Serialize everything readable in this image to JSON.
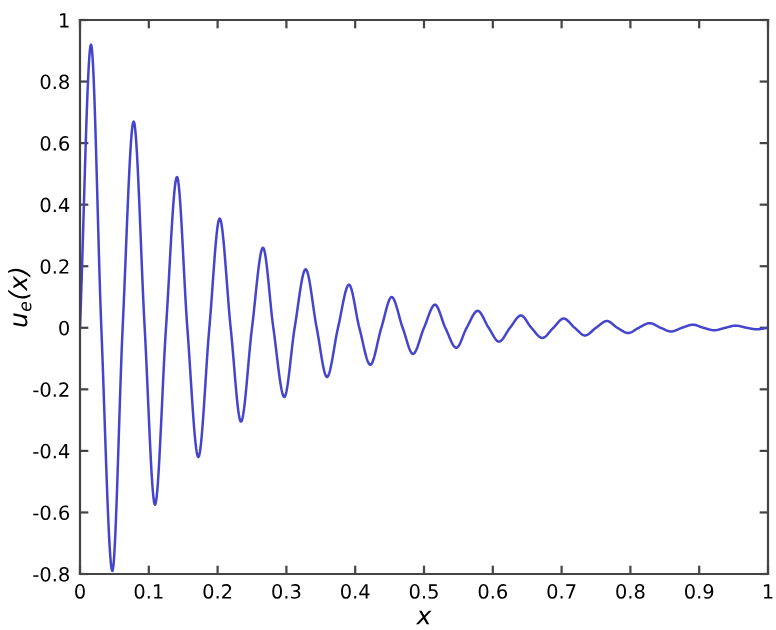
{
  "chart_data": {
    "type": "line",
    "xlabel": "x",
    "ylabel": "u$_{e}$(x)",
    "x": [
      0,
      0.016,
      0.031,
      0.047,
      0.062,
      0.078,
      0.094,
      0.109,
      0.125,
      0.141,
      0.156,
      0.172,
      0.188,
      0.203,
      0.219,
      0.234,
      0.25,
      0.266,
      0.281,
      0.297,
      0.312,
      0.328,
      0.344,
      0.359,
      0.375,
      0.391,
      0.406,
      0.422,
      0.438,
      0.453,
      0.469,
      0.484,
      0.5,
      0.516,
      0.531,
      0.547,
      0.562,
      0.578,
      0.594,
      0.609,
      0.625,
      0.641,
      0.656,
      0.672,
      0.688,
      0.703,
      0.719,
      0.734,
      0.75,
      0.766,
      0.781,
      0.797,
      0.812,
      0.828,
      0.844,
      0.859,
      0.875,
      0.891,
      0.906,
      0.922,
      0.938,
      0.953,
      0.969,
      0.984,
      1.0
    ],
    "series": [
      {
        "color": "#4444cc",
        "values": [
          0,
          0.92,
          0,
          -0.79,
          0,
          0.67,
          0,
          -0.575,
          0,
          0.49,
          0,
          -0.42,
          0,
          0.355,
          0,
          -0.305,
          0,
          0.26,
          0,
          -0.225,
          0,
          0.19,
          0,
          -0.16,
          0,
          0.14,
          0,
          -0.12,
          0,
          0.1,
          0,
          -0.085,
          0,
          0.075,
          0,
          -0.065,
          0,
          0.055,
          0,
          -0.045,
          0,
          0.04,
          0,
          -0.033,
          0,
          0.03,
          0,
          -0.025,
          0,
          0.022,
          0,
          -0.017,
          0,
          0.015,
          0,
          -0.012,
          0,
          0.01,
          0,
          -0.008,
          0,
          0.007,
          0,
          -0.005,
          0
        ]
      }
    ],
    "xlim": [
      0,
      1
    ],
    "xticks": [
      0,
      0.1,
      0.2,
      0.3,
      0.4,
      0.5,
      0.6,
      0.7,
      0.8,
      0.9,
      1
    ],
    "ylim": [
      -0.8,
      1
    ],
    "yticks": [
      -0.8,
      -0.6,
      -0.4,
      -0.2,
      0,
      0.2,
      0.4,
      0.6,
      0.8,
      1
    ],
    "grid": false,
    "legend": false,
    "marker": "none",
    "line_style": "solid"
  }
}
